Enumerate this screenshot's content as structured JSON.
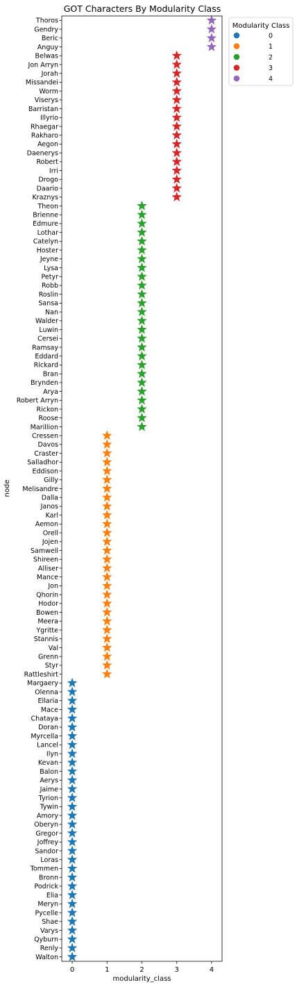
{
  "chart_data": {
    "type": "scatter",
    "title": "GOT Characters By Modularity Class",
    "xlabel": "modularity_class",
    "ylabel": "node",
    "xlim": [
      -0.3,
      4.3
    ],
    "xticks": [
      "0",
      "1",
      "2",
      "3",
      "4"
    ],
    "marker": "star",
    "grid": false,
    "legend": {
      "title": "Modularity Class",
      "placement": "outside-top-right",
      "entries": [
        "0",
        "1",
        "2",
        "3",
        "4"
      ]
    },
    "colors": [
      "#1f77b4",
      "#ff7f0e",
      "#2ca02c",
      "#d62728",
      "#9467bd"
    ],
    "points": [
      {
        "node": "Thoros",
        "modularity_class": 4
      },
      {
        "node": "Gendry",
        "modularity_class": 4
      },
      {
        "node": "Beric",
        "modularity_class": 4
      },
      {
        "node": "Anguy",
        "modularity_class": 4
      },
      {
        "node": "Belwas",
        "modularity_class": 3
      },
      {
        "node": "Jon Arryn",
        "modularity_class": 3
      },
      {
        "node": "Jorah",
        "modularity_class": 3
      },
      {
        "node": "Missandei",
        "modularity_class": 3
      },
      {
        "node": "Worm",
        "modularity_class": 3
      },
      {
        "node": "Viserys",
        "modularity_class": 3
      },
      {
        "node": "Barristan",
        "modularity_class": 3
      },
      {
        "node": "Illyrio",
        "modularity_class": 3
      },
      {
        "node": "Rhaegar",
        "modularity_class": 3
      },
      {
        "node": "Rakharo",
        "modularity_class": 3
      },
      {
        "node": "Aegon",
        "modularity_class": 3
      },
      {
        "node": "Daenerys",
        "modularity_class": 3
      },
      {
        "node": "Robert",
        "modularity_class": 3
      },
      {
        "node": "Irri",
        "modularity_class": 3
      },
      {
        "node": "Drogo",
        "modularity_class": 3
      },
      {
        "node": "Daario",
        "modularity_class": 3
      },
      {
        "node": "Kraznys",
        "modularity_class": 3
      },
      {
        "node": "Theon",
        "modularity_class": 2
      },
      {
        "node": "Brienne",
        "modularity_class": 2
      },
      {
        "node": "Edmure",
        "modularity_class": 2
      },
      {
        "node": "Lothar",
        "modularity_class": 2
      },
      {
        "node": "Catelyn",
        "modularity_class": 2
      },
      {
        "node": "Hoster",
        "modularity_class": 2
      },
      {
        "node": "Jeyne",
        "modularity_class": 2
      },
      {
        "node": "Lysa",
        "modularity_class": 2
      },
      {
        "node": "Petyr",
        "modularity_class": 2
      },
      {
        "node": "Robb",
        "modularity_class": 2
      },
      {
        "node": "Roslin",
        "modularity_class": 2
      },
      {
        "node": "Sansa",
        "modularity_class": 2
      },
      {
        "node": "Nan",
        "modularity_class": 2
      },
      {
        "node": "Walder",
        "modularity_class": 2
      },
      {
        "node": "Luwin",
        "modularity_class": 2
      },
      {
        "node": "Cersei",
        "modularity_class": 2
      },
      {
        "node": "Ramsay",
        "modularity_class": 2
      },
      {
        "node": "Eddard",
        "modularity_class": 2
      },
      {
        "node": "Rickard",
        "modularity_class": 2
      },
      {
        "node": "Bran",
        "modularity_class": 2
      },
      {
        "node": "Brynden",
        "modularity_class": 2
      },
      {
        "node": "Arya",
        "modularity_class": 2
      },
      {
        "node": "Robert Arryn",
        "modularity_class": 2
      },
      {
        "node": "Rickon",
        "modularity_class": 2
      },
      {
        "node": "Roose",
        "modularity_class": 2
      },
      {
        "node": "Marillion",
        "modularity_class": 2
      },
      {
        "node": "Cressen",
        "modularity_class": 1
      },
      {
        "node": "Davos",
        "modularity_class": 1
      },
      {
        "node": "Craster",
        "modularity_class": 1
      },
      {
        "node": "Salladhor",
        "modularity_class": 1
      },
      {
        "node": "Eddison",
        "modularity_class": 1
      },
      {
        "node": "Gilly",
        "modularity_class": 1
      },
      {
        "node": "Melisandre",
        "modularity_class": 1
      },
      {
        "node": "Dalla",
        "modularity_class": 1
      },
      {
        "node": "Janos",
        "modularity_class": 1
      },
      {
        "node": "Karl",
        "modularity_class": 1
      },
      {
        "node": "Aemon",
        "modularity_class": 1
      },
      {
        "node": "Orell",
        "modularity_class": 1
      },
      {
        "node": "Jojen",
        "modularity_class": 1
      },
      {
        "node": "Samwell",
        "modularity_class": 1
      },
      {
        "node": "Shireen",
        "modularity_class": 1
      },
      {
        "node": "Alliser",
        "modularity_class": 1
      },
      {
        "node": "Mance",
        "modularity_class": 1
      },
      {
        "node": "Jon",
        "modularity_class": 1
      },
      {
        "node": "Qhorin",
        "modularity_class": 1
      },
      {
        "node": "Hodor",
        "modularity_class": 1
      },
      {
        "node": "Bowen",
        "modularity_class": 1
      },
      {
        "node": "Meera",
        "modularity_class": 1
      },
      {
        "node": "Ygritte",
        "modularity_class": 1
      },
      {
        "node": "Stannis",
        "modularity_class": 1
      },
      {
        "node": "Val",
        "modularity_class": 1
      },
      {
        "node": "Grenn",
        "modularity_class": 1
      },
      {
        "node": "Styr",
        "modularity_class": 1
      },
      {
        "node": "Rattleshirt",
        "modularity_class": 1
      },
      {
        "node": "Margaery",
        "modularity_class": 0
      },
      {
        "node": "Olenna",
        "modularity_class": 0
      },
      {
        "node": "Ellaria",
        "modularity_class": 0
      },
      {
        "node": "Mace",
        "modularity_class": 0
      },
      {
        "node": "Chataya",
        "modularity_class": 0
      },
      {
        "node": "Doran",
        "modularity_class": 0
      },
      {
        "node": "Myrcella",
        "modularity_class": 0
      },
      {
        "node": "Lancel",
        "modularity_class": 0
      },
      {
        "node": "Ilyn",
        "modularity_class": 0
      },
      {
        "node": "Kevan",
        "modularity_class": 0
      },
      {
        "node": "Balon",
        "modularity_class": 0
      },
      {
        "node": "Aerys",
        "modularity_class": 0
      },
      {
        "node": "Jaime",
        "modularity_class": 0
      },
      {
        "node": "Tyrion",
        "modularity_class": 0
      },
      {
        "node": "Tywin",
        "modularity_class": 0
      },
      {
        "node": "Amory",
        "modularity_class": 0
      },
      {
        "node": "Oberyn",
        "modularity_class": 0
      },
      {
        "node": "Gregor",
        "modularity_class": 0
      },
      {
        "node": "Joffrey",
        "modularity_class": 0
      },
      {
        "node": "Sandor",
        "modularity_class": 0
      },
      {
        "node": "Loras",
        "modularity_class": 0
      },
      {
        "node": "Tommen",
        "modularity_class": 0
      },
      {
        "node": "Bronn",
        "modularity_class": 0
      },
      {
        "node": "Podrick",
        "modularity_class": 0
      },
      {
        "node": "Elia",
        "modularity_class": 0
      },
      {
        "node": "Meryn",
        "modularity_class": 0
      },
      {
        "node": "Pycelle",
        "modularity_class": 0
      },
      {
        "node": "Shae",
        "modularity_class": 0
      },
      {
        "node": "Varys",
        "modularity_class": 0
      },
      {
        "node": "Qyburn",
        "modularity_class": 0
      },
      {
        "node": "Renly",
        "modularity_class": 0
      },
      {
        "node": "Walton",
        "modularity_class": 0
      }
    ]
  }
}
